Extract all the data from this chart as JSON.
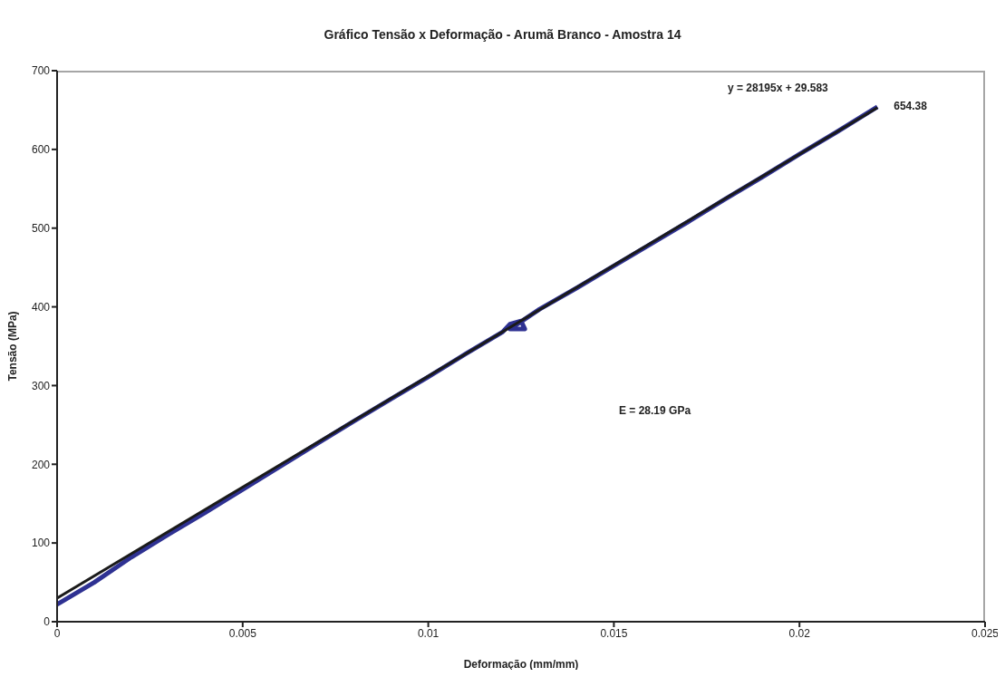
{
  "chart_data": {
    "type": "line",
    "title": "Gráfico Tensão x Deformação  - Arumã Branco - Amostra 14",
    "xlabel": "Deformação (mm/mm)",
    "ylabel": "Tensão (MPa)",
    "xlim": [
      0,
      0.025
    ],
    "xticks": [
      0,
      0.005,
      0.01,
      0.015,
      0.02,
      0.025
    ],
    "ylim": [
      0,
      700
    ],
    "yticks": [
      0,
      100,
      200,
      300,
      400,
      500,
      600,
      700
    ],
    "marker": "none",
    "line_style": "solid",
    "series": [
      {
        "color": "#2e3192",
        "x": [
          0,
          0.001,
          0.002,
          0.003,
          0.004,
          0.005,
          0.006,
          0.007,
          0.008,
          0.009,
          0.01,
          0.011,
          0.012,
          0.0122,
          0.0125,
          0.0126,
          0.0122,
          0.0124,
          0.013,
          0.014,
          0.015,
          0.016,
          0.017,
          0.018,
          0.019,
          0.02,
          0.021,
          0.0221
        ],
        "values": [
          22,
          50,
          82,
          111,
          139,
          168,
          197,
          226,
          255,
          283,
          311,
          340,
          368,
          378,
          382,
          372,
          372,
          378,
          397,
          424,
          452,
          480,
          508,
          537,
          565,
          594,
          622,
          654
        ]
      },
      {
        "color": "#1a1a1a",
        "x": [
          0,
          0.0221
        ],
        "values": [
          30,
          653
        ]
      }
    ],
    "annotations": [
      "y = 28195x + 29.583",
      {
        "text": "654.38",
        "x": 0.0221,
        "y": 654
      },
      "E = 28.19 GPa"
    ]
  }
}
